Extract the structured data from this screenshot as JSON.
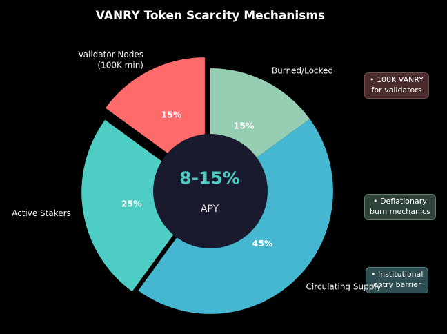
{
  "page": {
    "background": "#000000"
  },
  "title": {
    "text": "VANRY Token Scarcity Mechanisms",
    "color": "#ffffff"
  },
  "chart_data": {
    "type": "pie",
    "subtype": "donut",
    "title": "VANRY Token Scarcity Mechanisms",
    "direction": "clockwise",
    "start_angle_deg_from_top": 0,
    "hole_ratio": 0.465,
    "legend_position": "none",
    "label_color": "#f2f2f2",
    "pct_color": "#ffffff",
    "slices": [
      {
        "label": "Burned/Locked",
        "value_pct": 15,
        "pct_label": "15%",
        "color": "#96ceb4",
        "explode": 0
      },
      {
        "label": "Circulating Supply",
        "value_pct": 45,
        "pct_label": "45%",
        "color": "#45b7d1",
        "explode": 0
      },
      {
        "label": "Active Stakers",
        "value_pct": 25,
        "pct_label": "25%",
        "color": "#4ecdc4",
        "explode": 0.05
      },
      {
        "label": "Validator Nodes\n(100K min)",
        "value_pct": 15,
        "pct_label": "15%",
        "color": "#ff6b6b",
        "explode": 0.1
      }
    ],
    "center": {
      "value": "8-15%",
      "sub_label": "APY",
      "value_color": "#4ecdc4",
      "sub_color": "#e8e8e8",
      "circle_color": "#1a1a2e"
    }
  },
  "annotations": [
    {
      "lines": [
        "• 100K VANRY",
        "for validators"
      ],
      "bg": "#4a2b2b",
      "border": "#7c4a4a"
    },
    {
      "lines": [
        "• Deflationary",
        "burn mechanics"
      ],
      "bg": "#2f4239",
      "border": "#5c7a66"
    },
    {
      "lines": [
        "• Institutional",
        "entry barrier"
      ],
      "bg": "#2d4d50",
      "border": "#5c8a8e"
    }
  ]
}
